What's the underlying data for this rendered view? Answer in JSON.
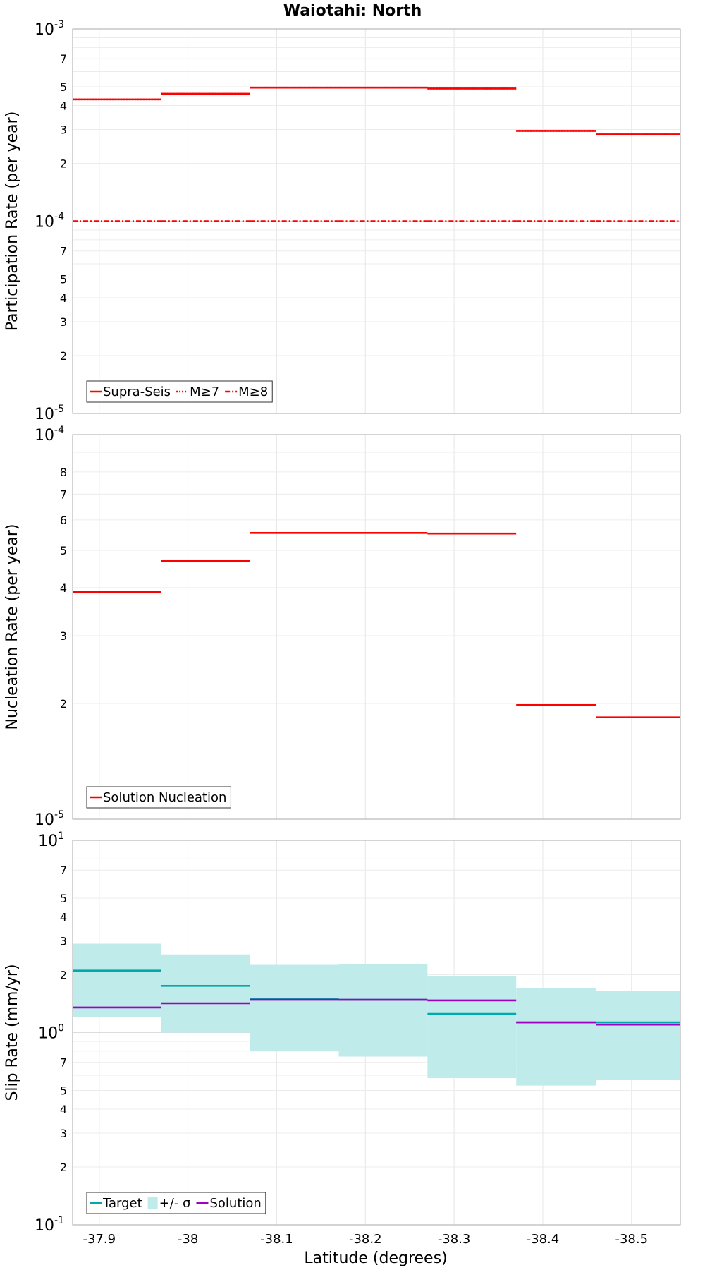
{
  "chart_data": {
    "type": "line",
    "title": "Waiotahi: North",
    "xlabel": "Latitude (degrees)",
    "xlim": [
      -37.87,
      -38.555
    ],
    "x_ticks": [
      -37.9,
      -38.0,
      -38.1,
      -38.2,
      -38.3,
      -38.4,
      -38.5
    ],
    "x_tick_labels": [
      "-37.9",
      "-38",
      "-38.1",
      "-38.2",
      "-38.3",
      "-38.4",
      "-38.5"
    ],
    "segment_bounds": [
      -37.87,
      -37.97,
      -38.07,
      -38.17,
      -38.27,
      -38.37,
      -38.46,
      -38.555
    ],
    "panels": [
      {
        "ylabel": "Participation Rate (per year)",
        "yscale": "log",
        "ylim": [
          1e-05,
          0.001
        ],
        "y_major_labels": [
          {
            "value": 0.001,
            "base": "10",
            "exp": "-3"
          },
          {
            "value": 0.0001,
            "base": "10",
            "exp": "-4"
          },
          {
            "value": 1e-05,
            "base": "10",
            "exp": "-5"
          }
        ],
        "y_minor_labels": [
          {
            "value": 0.0007,
            "label": "7"
          },
          {
            "value": 0.0005,
            "label": "5"
          },
          {
            "value": 0.0004,
            "label": "4"
          },
          {
            "value": 0.0003,
            "label": "3"
          },
          {
            "value": 0.0002,
            "label": "2"
          },
          {
            "value": 7e-05,
            "label": "7"
          },
          {
            "value": 5e-05,
            "label": "5"
          },
          {
            "value": 4e-05,
            "label": "4"
          },
          {
            "value": 3e-05,
            "label": "3"
          },
          {
            "value": 2e-05,
            "label": "2"
          }
        ],
        "series": [
          {
            "name": "Supra-Seis",
            "style": "solid",
            "color": "#ff0000",
            "values": [
              0.00043,
              0.00046,
              0.000495,
              0.000495,
              0.00049,
              0.000295,
              0.000283
            ],
            "show_in_legend": true
          },
          {
            "name": "M≥7",
            "style": "dotted",
            "color": "#ff0000",
            "values": [
              0.00043,
              0.00046,
              0.000495,
              0.000495,
              0.00049,
              0.000295,
              0.000283
            ],
            "show_in_legend": true
          },
          {
            "name": "M≥8",
            "style": "dashdot",
            "color": "#ff0000",
            "values": [
              0.0001,
              0.0001,
              0.0001,
              0.0001,
              0.0001,
              0.0001,
              0.0001
            ],
            "show_in_legend": true
          }
        ],
        "legend": "bottom-left"
      },
      {
        "ylabel": "Nucleation Rate (per year)",
        "yscale": "log",
        "ylim": [
          1e-05,
          0.0001
        ],
        "y_major_labels": [
          {
            "value": 0.0001,
            "base": "10",
            "exp": "-4"
          },
          {
            "value": 1e-05,
            "base": "10",
            "exp": "-5"
          }
        ],
        "y_minor_labels": [
          {
            "value": 8e-05,
            "label": "8"
          },
          {
            "value": 7e-05,
            "label": "7"
          },
          {
            "value": 6e-05,
            "label": "6"
          },
          {
            "value": 5e-05,
            "label": "5"
          },
          {
            "value": 4e-05,
            "label": "4"
          },
          {
            "value": 3e-05,
            "label": "3"
          },
          {
            "value": 2e-05,
            "label": "2"
          }
        ],
        "series": [
          {
            "name": "Solution Nucleation",
            "style": "solid",
            "color": "#ff0000",
            "values": [
              3.9e-05,
              4.7e-05,
              5.55e-05,
              5.55e-05,
              5.53e-05,
              1.98e-05,
              1.84e-05
            ],
            "show_in_legend": true
          }
        ],
        "legend": "bottom-left"
      },
      {
        "ylabel": "Slip Rate (mm/yr)",
        "yscale": "log",
        "ylim": [
          0.1,
          10
        ],
        "y_major_labels": [
          {
            "value": 10,
            "base": "10",
            "exp": "1"
          },
          {
            "value": 1,
            "base": "10",
            "exp": "0"
          },
          {
            "value": 0.1,
            "base": "10",
            "exp": "-1"
          }
        ],
        "y_minor_labels": [
          {
            "value": 7,
            "label": "7"
          },
          {
            "value": 5,
            "label": "5"
          },
          {
            "value": 4,
            "label": "4"
          },
          {
            "value": 3,
            "label": "3"
          },
          {
            "value": 2,
            "label": "2"
          },
          {
            "value": 0.7,
            "label": "7"
          },
          {
            "value": 0.5,
            "label": "5"
          },
          {
            "value": 0.4,
            "label": "4"
          },
          {
            "value": 0.3,
            "label": "3"
          },
          {
            "value": 0.2,
            "label": "2"
          }
        ],
        "band": {
          "name": "+/- σ",
          "color": "#c0ebeb",
          "lower": [
            1.2,
            1.0,
            0.8,
            0.75,
            0.58,
            0.53,
            0.57
          ],
          "upper": [
            2.9,
            2.55,
            2.25,
            2.27,
            1.97,
            1.7,
            1.65
          ]
        },
        "series": [
          {
            "name": "Target",
            "style": "solid",
            "color": "#00aaaa",
            "values": [
              2.1,
              1.75,
              1.5,
              1.48,
              1.25,
              1.13,
              1.13
            ],
            "show_in_legend": true
          },
          {
            "name": "Solution",
            "style": "solid",
            "color": "#a000c0",
            "values": [
              1.35,
              1.42,
              1.48,
              1.48,
              1.47,
              1.13,
              1.1
            ],
            "show_in_legend": true
          }
        ],
        "legend_order": [
          "Target",
          "+/- σ",
          "Solution"
        ],
        "legend": "bottom-left"
      }
    ]
  }
}
